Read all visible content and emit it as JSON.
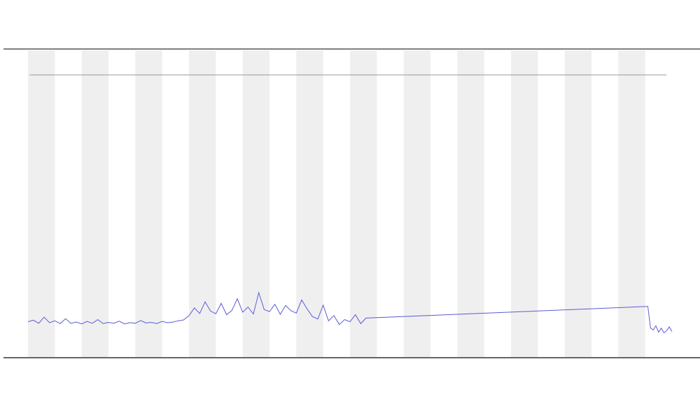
{
  "chart_data": {
    "type": "line",
    "x": [
      0,
      2,
      4,
      6,
      8,
      10,
      12,
      14,
      16,
      18,
      20,
      22,
      24,
      26,
      28,
      30,
      32,
      34,
      36,
      38,
      40,
      42,
      44,
      46,
      48,
      50,
      52,
      54,
      56,
      58,
      60,
      62,
      64,
      66,
      68,
      70,
      72,
      74,
      76,
      78,
      80,
      82,
      84,
      86,
      88,
      90,
      92,
      94,
      96,
      98,
      100,
      102,
      104,
      106,
      108,
      110,
      112,
      114,
      116,
      118,
      120,
      122,
      124,
      126,
      231,
      232,
      233,
      234,
      235,
      236,
      237,
      238,
      239,
      240
    ],
    "series": [
      {
        "color": "#5b5bd6",
        "values": [
          11.5,
          12,
          11,
          13,
          11.2,
          11.8,
          10.9,
          12.5,
          11,
          11.4,
          10.8,
          11.6,
          11,
          12.2,
          10.9,
          11.3,
          11,
          11.7,
          10.8,
          11.2,
          11,
          11.9,
          11.1,
          11.3,
          10.9,
          11.6,
          11.2,
          11.4,
          11.8,
          12.1,
          13.5,
          16,
          14.2,
          18,
          15,
          14.1,
          17.5,
          13.8,
          15.2,
          19,
          14.6,
          16.3,
          14,
          21,
          15.5,
          14.8,
          17.2,
          13.9,
          16.8,
          15.1,
          14.3,
          18.6,
          15.7,
          13.2,
          12.4,
          16.9,
          11.8,
          13.5,
          10.6,
          12.2,
          11.5,
          13.8,
          10.9,
          12.7,
          16.5,
          9.5,
          8.8,
          10.2,
          8.1,
          9.4,
          7.9,
          8.6,
          9.8,
          8.3
        ]
      }
    ],
    "xlim": [
      0,
      240
    ],
    "ylim": [
      0,
      100
    ]
  }
}
